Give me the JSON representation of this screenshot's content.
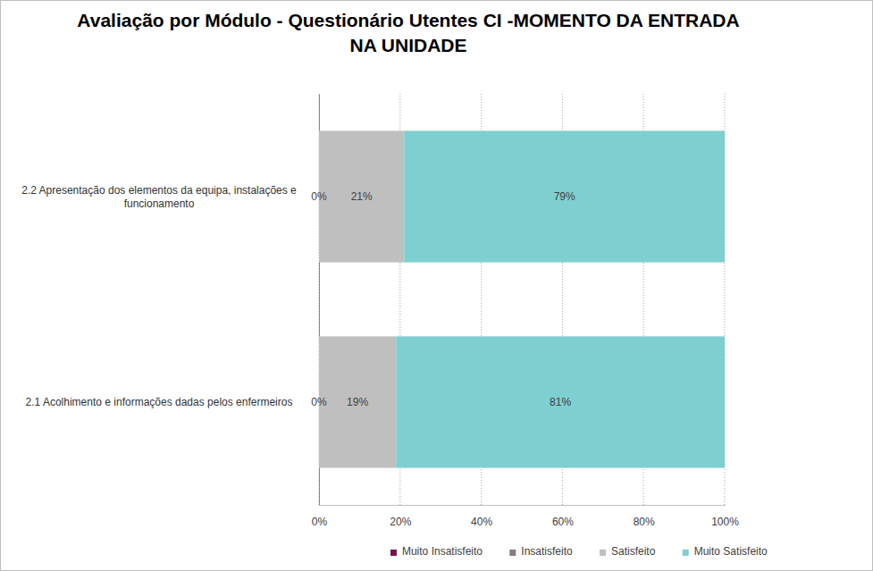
{
  "chart_data": {
    "type": "bar",
    "title": "Avaliação por Módulo - Questionário Utentes  CI -MOMENTO DA ENTRADA NA UNIDADE",
    "orientation": "horizontal",
    "stacked": true,
    "data_labels": true,
    "grid": true,
    "legend": "bottom",
    "categories": [
      "2.2 Apresentação dos elementos da equipa, instalações e funcionamento",
      "2.1 Acolhimento e informações dadas pelos enfermeiros"
    ],
    "series": [
      {
        "name": "Muito Insatisfeito",
        "color": "#7b1050",
        "values": [
          null,
          null
        ],
        "value_labels": [
          null,
          null
        ]
      },
      {
        "name": "Insatisfeito",
        "color": "#7f7f7f",
        "values": [
          0,
          0
        ],
        "value_labels": [
          "0%",
          "0%"
        ]
      },
      {
        "name": "Satisfeito",
        "color": "#bfbfbf",
        "values": [
          21,
          19
        ],
        "value_labels": [
          "21%",
          "19%"
        ]
      },
      {
        "name": "Muito Satisfeito",
        "color": "#7ecfd0",
        "values": [
          79,
          81
        ],
        "value_labels": [
          "79%",
          "81%"
        ]
      }
    ],
    "xlim": [
      0,
      100
    ],
    "xticks": [
      {
        "value": 0,
        "label": "0%"
      },
      {
        "value": 20,
        "label": "20%"
      },
      {
        "value": 40,
        "label": "40%"
      },
      {
        "value": 60,
        "label": "60%"
      },
      {
        "value": 80,
        "label": "80%"
      },
      {
        "value": 100,
        "label": "100%"
      }
    ]
  }
}
